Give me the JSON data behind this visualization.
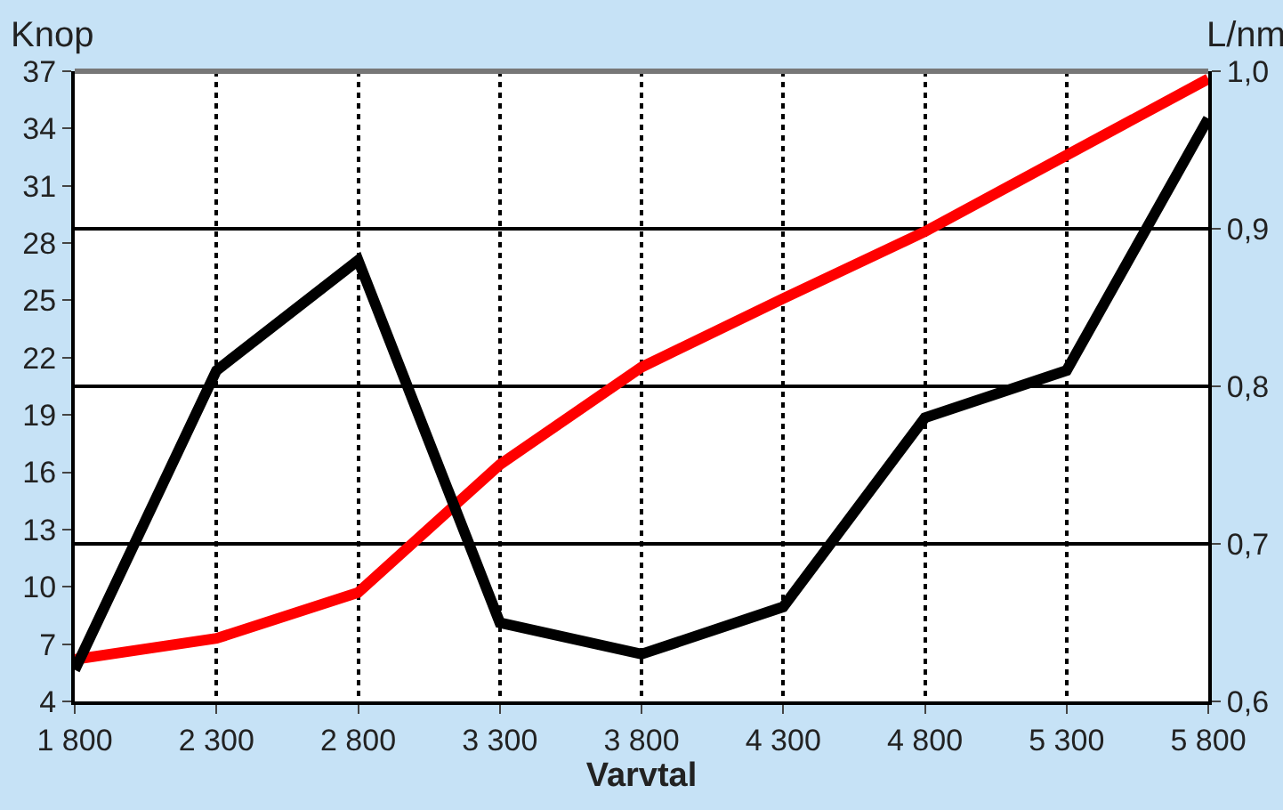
{
  "chart_data": {
    "type": "line",
    "xlabel": "Varvtal",
    "ylabel": "Knop",
    "y2label": "L/nm",
    "x": [
      1800,
      2300,
      2800,
      3300,
      3800,
      4300,
      4800,
      5300,
      5800
    ],
    "series": [
      {
        "color": "#ff0000",
        "values": [
          6.2,
          7.3,
          9.7,
          16.4,
          21.5,
          25.1,
          28.6,
          32.6,
          36.6
        ]
      },
      {
        "color": "#000000",
        "axis": "y2",
        "values": [
          0.62,
          0.81,
          0.88,
          0.65,
          0.63,
          0.66,
          0.78,
          0.81,
          0.97
        ]
      }
    ],
    "xlim": [
      1800,
      5800
    ],
    "xticks": [
      {
        "value": 1800,
        "label": "1 800"
      },
      {
        "value": 2300,
        "label": "2 300"
      },
      {
        "value": 2800,
        "label": "2 800"
      },
      {
        "value": 3300,
        "label": "3 300"
      },
      {
        "value": 3800,
        "label": "3 800"
      },
      {
        "value": 4300,
        "label": "4 300"
      },
      {
        "value": 4800,
        "label": "4 800"
      },
      {
        "value": 5300,
        "label": "5 300"
      },
      {
        "value": 5800,
        "label": "5 800"
      }
    ],
    "ylim": [
      4,
      37
    ],
    "yticks": [
      4,
      7,
      10,
      13,
      16,
      19,
      22,
      25,
      28,
      31,
      34,
      37
    ],
    "y2lim": [
      0.6,
      1.0
    ],
    "y2ticks": [
      {
        "value": 0.6,
        "label": "0,6"
      },
      {
        "value": 0.7,
        "label": "0,7"
      },
      {
        "value": 0.8,
        "label": "0,8"
      },
      {
        "value": 0.9,
        "label": "0,9"
      },
      {
        "value": 1.0,
        "label": "1,0"
      }
    ],
    "grid": true,
    "marker": "none",
    "line_style": "solid"
  }
}
